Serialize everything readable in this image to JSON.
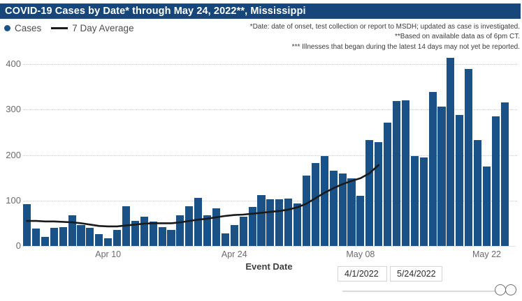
{
  "header": {
    "title": "COVID-19 Cases by Date* through May 24, 2022**, Mississippi"
  },
  "legend": {
    "cases_label": "Cases",
    "avg_label": "7 Day Average"
  },
  "footnotes": [
    "*Date: date of onset, test collection or report to MSDH; updated as case is investigated.",
    "**Based on available data as of 6pm CT.",
    "*** Illnesses that began during the latest 14 days may not yet be reported."
  ],
  "colors": {
    "header_bg": "#17477A",
    "bar_blue": "#1A5287",
    "avg_line": "#1A1A1A",
    "axis_text": "#6B6B6B"
  },
  "filters": {
    "start_date": "4/1/2022",
    "end_date": "5/24/2022"
  },
  "chart_data": {
    "type": "bar",
    "xlabel": "Event Date",
    "ylabel": "",
    "ylim": [
      0,
      430
    ],
    "grid": "horizontal-dotted",
    "legend_position": "top-left",
    "categories": [
      "Apr 1",
      "Apr 2",
      "Apr 3",
      "Apr 4",
      "Apr 5",
      "Apr 6",
      "Apr 7",
      "Apr 8",
      "Apr 9",
      "Apr 10",
      "Apr 11",
      "Apr 12",
      "Apr 13",
      "Apr 14",
      "Apr 15",
      "Apr 16",
      "Apr 17",
      "Apr 18",
      "Apr 19",
      "Apr 20",
      "Apr 21",
      "Apr 22",
      "Apr 23",
      "Apr 24",
      "Apr 25",
      "Apr 26",
      "Apr 27",
      "Apr 28",
      "Apr 29",
      "Apr 30",
      "May 1",
      "May 2",
      "May 3",
      "May 4",
      "May 5",
      "May 6",
      "May 7",
      "May 8",
      "May 9",
      "May 10",
      "May 11",
      "May 12",
      "May 13",
      "May 14",
      "May 15",
      "May 16",
      "May 17",
      "May 18",
      "May 19",
      "May 20",
      "May 21",
      "May 22",
      "May 23",
      "May 24"
    ],
    "series": [
      {
        "name": "Cases",
        "type": "bar",
        "values": [
          92,
          38,
          20,
          40,
          42,
          68,
          46,
          40,
          26,
          17,
          35,
          87,
          55,
          65,
          54,
          42,
          36,
          67,
          87,
          105,
          68,
          82,
          28,
          46,
          65,
          86,
          112,
          102,
          103,
          104,
          93,
          155,
          182,
          197,
          165,
          160,
          149,
          111,
          233,
          228,
          271,
          319,
          320,
          197,
          194,
          339,
          306,
          414,
          288,
          389,
          233,
          175,
          285,
          315
        ]
      },
      {
        "name": "7 Day Average",
        "type": "line",
        "note": "plotted Apr 1 through May 10 only",
        "values": [
          55,
          55,
          54,
          54,
          53,
          52,
          50,
          47,
          44,
          43,
          43,
          45,
          47,
          49,
          50,
          50,
          50,
          52,
          55,
          58,
          60,
          63,
          66,
          68,
          69,
          71,
          73,
          75,
          77,
          80,
          85,
          93,
          105,
          117,
          127,
          136,
          143,
          149,
          160,
          178
        ]
      }
    ],
    "y_ticks": [
      0,
      100,
      200,
      300,
      400
    ],
    "x_ticks": [
      {
        "label": "Apr 10",
        "index": 9
      },
      {
        "label": "Apr 24",
        "index": 23
      },
      {
        "label": "May 08",
        "index": 37
      },
      {
        "label": "May 22",
        "index": 51
      }
    ]
  }
}
